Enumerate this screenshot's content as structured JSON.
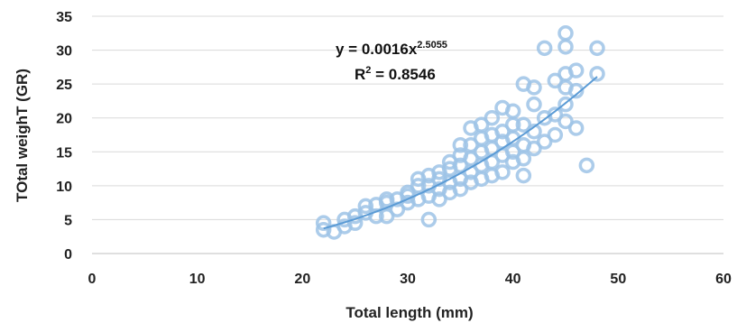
{
  "chart_data": {
    "type": "scatter",
    "xlabel": "Total length (mm)",
    "ylabel": "TOtal weighT (GR)",
    "xlim": [
      0,
      60
    ],
    "ylim": [
      0,
      35
    ],
    "xticks": [
      "0",
      "10",
      "20",
      "30",
      "40",
      "50",
      "60"
    ],
    "yticks": [
      "0",
      "5",
      "10",
      "15",
      "20",
      "25",
      "30",
      "35"
    ],
    "grid": "horizontal",
    "legend": "none",
    "marker_color": "#9dc3e6",
    "trendline_color": "#5b9bd5",
    "trendline": {
      "type": "power",
      "coefficient": 0.0016,
      "exponent": 2.5055,
      "equation_prefix": "y = 0.0016x",
      "equation_exponent": "2.5055",
      "r2_prefix": "R",
      "r2_sup": "2",
      "r2_suffix": " = 0.8546"
    },
    "points": [
      [
        22,
        3.5
      ],
      [
        22,
        4.5
      ],
      [
        23,
        3.2
      ],
      [
        24,
        4.0
      ],
      [
        24,
        5.0
      ],
      [
        25,
        4.5
      ],
      [
        25,
        5.5
      ],
      [
        26,
        6.0
      ],
      [
        26,
        7.0
      ],
      [
        27,
        5.5
      ],
      [
        27,
        7.2
      ],
      [
        28,
        5.5
      ],
      [
        28,
        8.0
      ],
      [
        28,
        7.5
      ],
      [
        29,
        6.5
      ],
      [
        29,
        8.0
      ],
      [
        30,
        7.5
      ],
      [
        30,
        9.0
      ],
      [
        30,
        8.5
      ],
      [
        31,
        8.0
      ],
      [
        31,
        10.0
      ],
      [
        31,
        11.0
      ],
      [
        32,
        5.0
      ],
      [
        32,
        8.5
      ],
      [
        32,
        10.0
      ],
      [
        32,
        11.5
      ],
      [
        33,
        8.0
      ],
      [
        33,
        9.5
      ],
      [
        33,
        11.0
      ],
      [
        33,
        12.0
      ],
      [
        34,
        9.0
      ],
      [
        34,
        10.5
      ],
      [
        34,
        12.5
      ],
      [
        34,
        13.5
      ],
      [
        35,
        9.5
      ],
      [
        35,
        11.0
      ],
      [
        35,
        13.0
      ],
      [
        35,
        14.5
      ],
      [
        35,
        16.0
      ],
      [
        36,
        10.5
      ],
      [
        36,
        12.0
      ],
      [
        36,
        14.0
      ],
      [
        36,
        16.0
      ],
      [
        36,
        18.5
      ],
      [
        37,
        11.0
      ],
      [
        37,
        13.0
      ],
      [
        37,
        15.0
      ],
      [
        37,
        17.0
      ],
      [
        37,
        19.0
      ],
      [
        38,
        11.5
      ],
      [
        38,
        13.5
      ],
      [
        38,
        15.5
      ],
      [
        38,
        17.5
      ],
      [
        38,
        20.0
      ],
      [
        39,
        12.0
      ],
      [
        39,
        14.5
      ],
      [
        39,
        16.5
      ],
      [
        39,
        18.0
      ],
      [
        39,
        21.5
      ],
      [
        40,
        13.5
      ],
      [
        40,
        15.0
      ],
      [
        40,
        17.0
      ],
      [
        40,
        19.0
      ],
      [
        40,
        21.0
      ],
      [
        41,
        11.5
      ],
      [
        41,
        14.0
      ],
      [
        41,
        16.0
      ],
      [
        41,
        19.0
      ],
      [
        41,
        25.0
      ],
      [
        42,
        15.5
      ],
      [
        42,
        18.0
      ],
      [
        42,
        22.0
      ],
      [
        42,
        24.5
      ],
      [
        43,
        16.5
      ],
      [
        43,
        20.0
      ],
      [
        43,
        30.3
      ],
      [
        44,
        17.5
      ],
      [
        44,
        20.5
      ],
      [
        44,
        25.5
      ],
      [
        45,
        19.5
      ],
      [
        45,
        22.0
      ],
      [
        45,
        24.5
      ],
      [
        45,
        26.5
      ],
      [
        45,
        30.5
      ],
      [
        45,
        32.5
      ],
      [
        46,
        18.5
      ],
      [
        46,
        24.0
      ],
      [
        46,
        27.0
      ],
      [
        47,
        13.0
      ],
      [
        48,
        26.5
      ],
      [
        48,
        30.3
      ]
    ]
  }
}
